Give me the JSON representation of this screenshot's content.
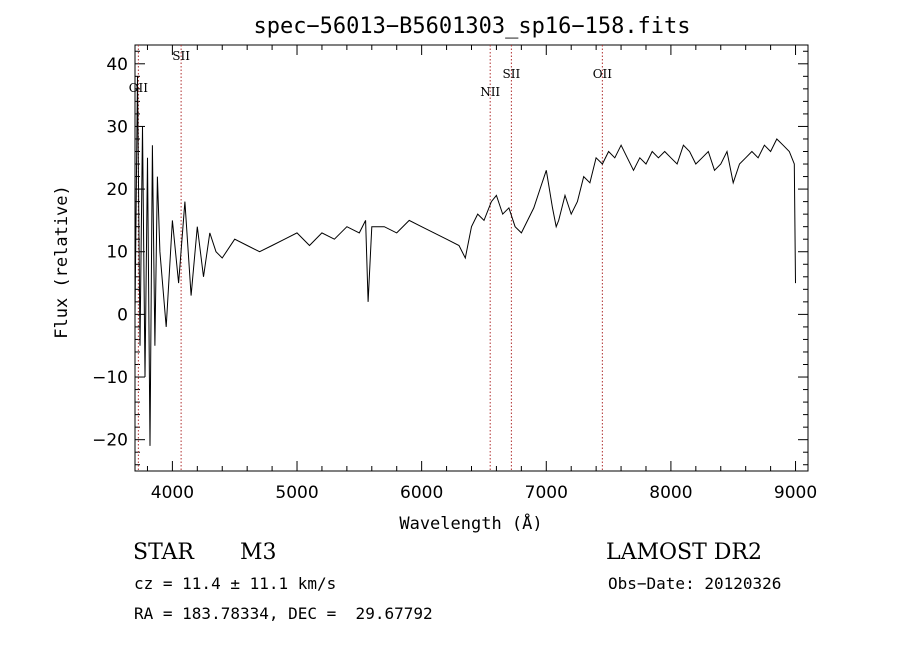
{
  "chart_data": {
    "type": "line",
    "title": "spec−56013−B5601303_sp16−158.fits",
    "xlabel": "Wavelength (Å)",
    "ylabel": "Flux (relative)",
    "xlim": [
      3700,
      9100
    ],
    "ylim": [
      -25,
      43
    ],
    "xticks": [
      4000,
      5000,
      6000,
      7000,
      8000,
      9000
    ],
    "yticks": [
      -20,
      -10,
      0,
      10,
      20,
      30,
      40
    ],
    "ytick_labels": [
      "−20",
      "−10",
      "0",
      "10",
      "20",
      "30",
      "40"
    ],
    "grid": false,
    "series": [
      {
        "name": "spectrum",
        "x": [
          3700,
          3720,
          3740,
          3760,
          3780,
          3800,
          3820,
          3840,
          3860,
          3880,
          3900,
          3950,
          4000,
          4050,
          4100,
          4150,
          4200,
          4250,
          4300,
          4350,
          4400,
          4500,
          4600,
          4700,
          4800,
          4900,
          5000,
          5100,
          5200,
          5300,
          5400,
          5500,
          5550,
          5570,
          5600,
          5700,
          5800,
          5900,
          6000,
          6100,
          6200,
          6300,
          6350,
          6400,
          6450,
          6500,
          6560,
          6600,
          6650,
          6700,
          6750,
          6800,
          6850,
          6900,
          6950,
          7000,
          7050,
          7080,
          7100,
          7150,
          7200,
          7250,
          7300,
          7350,
          7400,
          7450,
          7500,
          7550,
          7600,
          7650,
          7700,
          7750,
          7800,
          7850,
          7900,
          7950,
          8000,
          8050,
          8100,
          8150,
          8200,
          8250,
          8300,
          8350,
          8400,
          8450,
          8500,
          8550,
          8600,
          8650,
          8700,
          8750,
          8800,
          8850,
          8900,
          8950,
          8990,
          9000
        ],
        "values": [
          0,
          38,
          -5,
          30,
          -10,
          25,
          -21,
          27,
          -5,
          22,
          10,
          -2,
          15,
          5,
          18,
          3,
          14,
          6,
          13,
          10,
          9,
          12,
          11,
          10,
          11,
          12,
          13,
          11,
          13,
          12,
          14,
          13,
          15,
          2,
          14,
          14,
          13,
          15,
          14,
          13,
          12,
          11,
          9,
          14,
          16,
          15,
          18,
          19,
          16,
          17,
          14,
          13,
          15,
          17,
          20,
          23,
          17,
          14,
          15,
          19,
          16,
          18,
          22,
          21,
          25,
          24,
          26,
          25,
          27,
          25,
          23,
          25,
          24,
          26,
          25,
          26,
          25,
          24,
          27,
          26,
          24,
          25,
          26,
          23,
          24,
          26,
          21,
          24,
          25,
          26,
          25,
          27,
          26,
          28,
          27,
          26,
          24,
          5
        ]
      }
    ],
    "lines": [
      {
        "label": "OII",
        "x": 3727
      },
      {
        "label": "SII",
        "x": 4070
      },
      {
        "label": "NII",
        "x": 6550
      },
      {
        "label": "SII",
        "x": 6720
      },
      {
        "label": "OII",
        "x": 7450
      }
    ]
  },
  "info": {
    "class": "STAR",
    "subclass": "M3",
    "cz": "cz = 11.4 ± 11.1 km/s",
    "radec": "RA = 183.78334, DEC =  29.67792",
    "survey": "LAMOST DR2",
    "obsdate": "Obs−Date: 20120326"
  }
}
